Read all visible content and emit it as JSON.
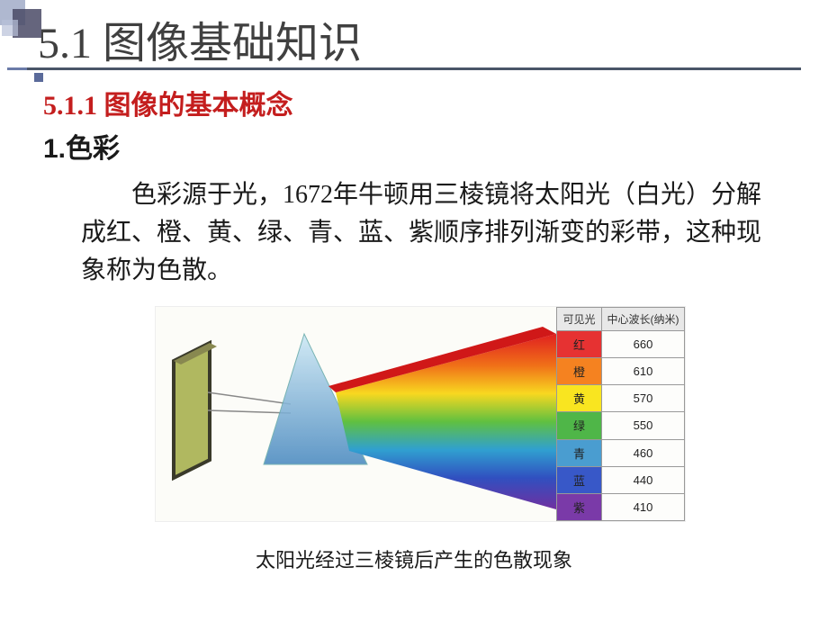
{
  "header": {
    "title": "5.1 图像基础知识",
    "subtitle": "5.1.1 图像的基本概念",
    "section": "1.色彩"
  },
  "body": {
    "paragraph": "色彩源于光，1672年牛顿用三棱镜将太阳光（白光）分解成红、橙、黄、绿、青、蓝、紫顺序排列渐变的彩带，这种现象称为色散。"
  },
  "spectrum_table": {
    "header_left": "可见光",
    "header_right": "中心波长(纳米)",
    "rows": [
      {
        "name": "红",
        "wavelength": "660",
        "bg": "#e63232"
      },
      {
        "name": "橙",
        "wavelength": "610",
        "bg": "#f58220"
      },
      {
        "name": "黄",
        "wavelength": "570",
        "bg": "#f9e520"
      },
      {
        "name": "绿",
        "wavelength": "550",
        "bg": "#4fb648"
      },
      {
        "name": "青",
        "wavelength": "460",
        "bg": "#4a9dd0"
      },
      {
        "name": "蓝",
        "wavelength": "440",
        "bg": "#3858c8"
      },
      {
        "name": "紫",
        "wavelength": "410",
        "bg": "#7a3aa8"
      }
    ]
  },
  "prism": {
    "spectrum_colors": [
      "#e02020",
      "#f07018",
      "#f8d820",
      "#60c040",
      "#30a0d0",
      "#3050c0",
      "#7030a0"
    ],
    "prism_fill_top": "#bde0f0",
    "prism_fill_bottom": "#4a8ac0",
    "screen_color": "#b0b860",
    "screen_border": "#3a3a2a"
  },
  "caption": "太阳光经过三棱镜后产生的色散现象",
  "deco_colors": {
    "dark": "#4a4a66",
    "mid": "#7a88b0",
    "light": "#b8c0d8"
  }
}
